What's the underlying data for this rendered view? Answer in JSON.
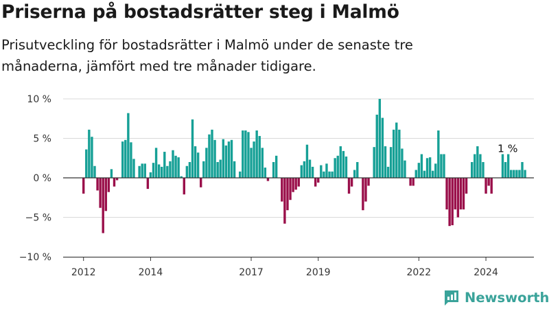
{
  "header": {
    "title": "Priserna på bostadsrätter steg i Malmö",
    "subtitle": "Prisutveckling för bostadsrätter i Malmö under de senaste tre månaderna, jämfört med tre månader tidigare."
  },
  "brand": {
    "name": "Newsworthy",
    "icon": "newsworthy-logo-icon"
  },
  "colors": {
    "positive": "#16a096",
    "negative": "#9a0f4a",
    "axis": "#333333",
    "grid": "#d9d9d9",
    "brand": "#3aa39a"
  },
  "chart_data": {
    "type": "bar",
    "x_start": "2012-01",
    "x_end": "2024-09",
    "y_unit": "%",
    "ylim": [
      -10,
      10
    ],
    "y_ticks": [
      {
        "value": 10,
        "label": "10 %"
      },
      {
        "value": 5,
        "label": "5 %"
      },
      {
        "value": 0,
        "label": "0 %"
      },
      {
        "value": -5,
        "label": "−5 %"
      },
      {
        "value": -10,
        "label": "−10 %"
      }
    ],
    "x_ticks": [
      {
        "date": "2012-01",
        "label": "2012"
      },
      {
        "date": "2014-01",
        "label": "2014"
      },
      {
        "date": "2017-01",
        "label": "2017"
      },
      {
        "date": "2019-01",
        "label": "2019"
      },
      {
        "date": "2022-01",
        "label": "2022"
      },
      {
        "date": "2024-01",
        "label": "2024"
      }
    ],
    "annotation": {
      "label": "1 %",
      "date": "2024-09",
      "value": 1
    },
    "series": [
      {
        "values": [
          -2,
          3.6,
          6.1,
          5.2,
          1.5,
          -1.6,
          -3.8,
          -7,
          -4.2,
          -1.8,
          1.1,
          -1.1,
          -0.3,
          0,
          4.6,
          4.8,
          8.2,
          4.5,
          2.4,
          0,
          1.5,
          1.8,
          1.8,
          -1.4,
          0.7,
          1.9,
          3.8,
          1.7,
          1.4,
          3.3,
          1.5,
          2.1,
          3.5,
          2.8,
          2.6,
          0.2,
          -2.1,
          1.5,
          2,
          7.4,
          4,
          3.2,
          -1.2,
          2.1,
          3.8,
          5.5,
          6.1,
          4.8,
          2,
          2.3,
          4.9,
          4.1,
          4.6,
          4.8,
          2.1,
          0,
          0.8,
          6,
          6,
          5.8,
          3.8,
          4.6,
          6,
          5.3,
          3.8,
          1.3,
          -0.4,
          0,
          2,
          2.8,
          0,
          -3,
          -5.8,
          -4.1,
          -2.8,
          -1.8,
          -1.5,
          -1.1,
          1.6,
          2.1,
          4.2,
          2.3,
          1.4,
          -1.1,
          -0.6,
          1.6,
          0.8,
          1.8,
          0.8,
          0.8,
          2.5,
          2.8,
          4,
          3.4,
          2.7,
          -2,
          -1.1,
          1,
          2,
          0,
          -4.1,
          -3,
          -1,
          0,
          3.9,
          8,
          10,
          7.6,
          4,
          1.4,
          3.9,
          6.1,
          7,
          6.1,
          3.7,
          2.2,
          0,
          -1,
          -1,
          1,
          1.9,
          3,
          0.9,
          2.5,
          2.6,
          0.9,
          1.8,
          6,
          3,
          3,
          -4,
          -6.1,
          -6,
          -4,
          -5,
          -4,
          -4,
          -2,
          0,
          2,
          3,
          4,
          3,
          2,
          -2,
          -1,
          -2,
          0,
          0,
          0,
          3,
          2,
          3,
          1,
          1,
          1,
          1,
          2,
          1
        ]
      }
    ]
  }
}
